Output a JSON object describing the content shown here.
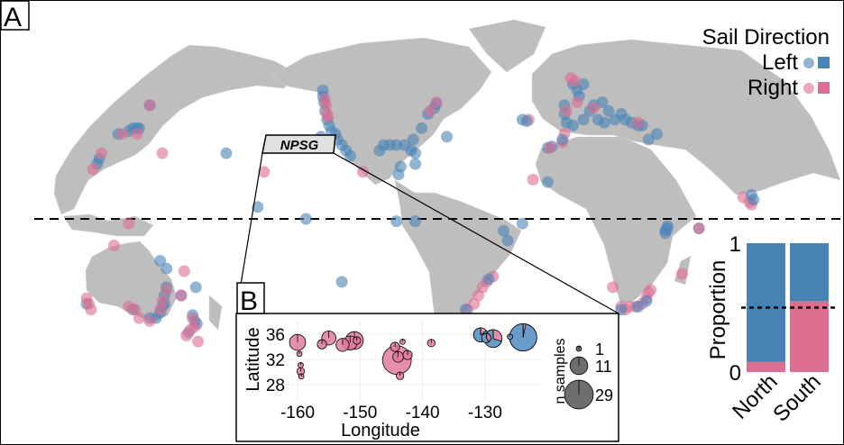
{
  "panel_a": {
    "label": "A",
    "callout_label": "NPSG",
    "legend": {
      "title": "Sail Direction",
      "items": [
        {
          "label": "Left",
          "color": "#4a83b7"
        },
        {
          "label": "Right",
          "color": "#de6e91"
        }
      ]
    },
    "equator_line": "dashed",
    "map_points_lonlat_direction": [
      [
        -124,
        48,
        "L"
      ],
      [
        -124,
        46,
        "L"
      ],
      [
        -123.5,
        44,
        "L"
      ],
      [
        -123,
        41,
        "L"
      ],
      [
        -122,
        38,
        "L"
      ],
      [
        -121,
        36,
        "L"
      ],
      [
        -120,
        34,
        "L"
      ],
      [
        -118,
        33,
        "L"
      ],
      [
        -117,
        31,
        "L"
      ],
      [
        -115,
        29,
        "L"
      ],
      [
        -113,
        27,
        "L"
      ],
      [
        -111,
        25,
        "L"
      ],
      [
        -125,
        32,
        "L"
      ],
      [
        -123,
        45,
        "R"
      ],
      [
        -122.5,
        43,
        "R"
      ],
      [
        -122,
        40,
        "R"
      ],
      [
        -121.5,
        39,
        "R"
      ],
      [
        -105,
        19,
        "R"
      ],
      [
        -97,
        27,
        "L"
      ],
      [
        -95,
        29,
        "L"
      ],
      [
        -92,
        29,
        "L"
      ],
      [
        -89,
        29,
        "L"
      ],
      [
        -85,
        29,
        "L"
      ],
      [
        -82,
        27,
        "L"
      ],
      [
        -80,
        26,
        "L"
      ],
      [
        -81,
        31,
        "L"
      ],
      [
        -77,
        35,
        "L"
      ],
      [
        -74,
        40,
        "L"
      ],
      [
        -71,
        42,
        "L"
      ],
      [
        -70,
        43.5,
        "L"
      ],
      [
        -65,
        32,
        "L"
      ],
      [
        -80,
        22,
        "L"
      ],
      [
        -87,
        21,
        "L"
      ],
      [
        -88,
        18,
        "L"
      ],
      [
        -73,
        41,
        "R"
      ],
      [
        -70,
        44,
        "R"
      ],
      [
        -170,
        26,
        "L"
      ],
      [
        -152,
        19,
        "R"
      ],
      [
        -155,
        5,
        "L"
      ],
      [
        -132,
        0,
        "L"
      ],
      [
        -115,
        -25,
        "L"
      ],
      [
        -89,
        -1,
        "L"
      ],
      [
        -80,
        -1,
        "L"
      ],
      [
        -38,
        -5,
        "L"
      ],
      [
        -36,
        -9,
        "L"
      ],
      [
        -29,
        -2,
        "L"
      ],
      [
        -43,
        -23,
        "R"
      ],
      [
        -46,
        -25,
        "R"
      ],
      [
        -48,
        -27,
        "R"
      ],
      [
        -50,
        -30,
        "R"
      ],
      [
        -52,
        -33,
        "R"
      ],
      [
        -55,
        -35,
        "R"
      ],
      [
        -45,
        -24,
        "L"
      ],
      [
        -56,
        -35,
        "L"
      ],
      [
        -9,
        43,
        "L"
      ],
      [
        -9,
        40,
        "L"
      ],
      [
        -8,
        37,
        "L"
      ],
      [
        -5,
        36,
        "L"
      ],
      [
        0,
        38,
        "L"
      ],
      [
        3,
        41,
        "L"
      ],
      [
        5,
        43,
        "L"
      ],
      [
        9,
        44,
        "L"
      ],
      [
        12,
        41,
        "L"
      ],
      [
        15,
        38,
        "L"
      ],
      [
        18,
        40,
        "L"
      ],
      [
        20,
        38,
        "L"
      ],
      [
        23,
        37,
        "L"
      ],
      [
        26,
        36,
        "L"
      ],
      [
        28,
        36,
        "L"
      ],
      [
        -3,
        48,
        "L"
      ],
      [
        -5,
        50,
        "L"
      ],
      [
        0,
        50,
        "L"
      ],
      [
        -2,
        46,
        "L"
      ],
      [
        35,
        33,
        "L"
      ],
      [
        31,
        31,
        "L"
      ],
      [
        10,
        37,
        "L"
      ],
      [
        7,
        38,
        "L"
      ],
      [
        -4,
        51,
        "R"
      ],
      [
        -6,
        52,
        "R"
      ],
      [
        -3,
        44,
        "R"
      ],
      [
        -8,
        41,
        "R"
      ],
      [
        26,
        37,
        "R"
      ],
      [
        5,
        42,
        "R"
      ],
      [
        -17,
        28,
        "L"
      ],
      [
        -15,
        28.5,
        "L"
      ],
      [
        -16,
        28,
        "R"
      ],
      [
        -10,
        30,
        "R"
      ],
      [
        -9,
        33,
        "R"
      ],
      [
        -10,
        31,
        "L"
      ],
      [
        -29,
        38,
        "L"
      ],
      [
        -26,
        38,
        "R"
      ],
      [
        -27,
        37.5,
        "L"
      ],
      [
        -24,
        16,
        "R"
      ],
      [
        -17,
        15,
        "L"
      ],
      [
        40,
        -3,
        "L"
      ],
      [
        39,
        -5,
        "L"
      ],
      [
        40,
        -4,
        "L"
      ],
      [
        39,
        -6,
        "L"
      ],
      [
        55,
        -4,
        "L"
      ],
      [
        55,
        -4,
        "R"
      ],
      [
        47,
        -22,
        "R"
      ],
      [
        18,
        -34,
        "R"
      ],
      [
        20,
        -35,
        "R"
      ],
      [
        22,
        -34,
        "R"
      ],
      [
        25,
        -34,
        "R"
      ],
      [
        28,
        -33,
        "R"
      ],
      [
        30,
        -31,
        "R"
      ],
      [
        31,
        -29,
        "R"
      ],
      [
        32,
        -28,
        "R"
      ],
      [
        14,
        -27,
        "R"
      ],
      [
        26,
        -34,
        "L"
      ],
      [
        30,
        -32,
        "L"
      ],
      [
        18,
        -35,
        "L"
      ],
      [
        76,
        9,
        "R"
      ],
      [
        79,
        7,
        "R"
      ],
      [
        80,
        6,
        "R"
      ],
      [
        81,
        8,
        "L"
      ],
      [
        80,
        10,
        "L"
      ],
      [
        140,
        35,
        "L"
      ],
      [
        139,
        35,
        "L"
      ],
      [
        135,
        34,
        "L"
      ],
      [
        137,
        35,
        "L"
      ],
      [
        130,
        33,
        "L"
      ],
      [
        132,
        33,
        "R"
      ],
      [
        139,
        33,
        "R"
      ],
      [
        145,
        43,
        "L"
      ],
      [
        145,
        43,
        "R"
      ],
      [
        151,
        26,
        "R"
      ],
      [
        121,
        24,
        "L"
      ],
      [
        120,
        22,
        "L"
      ],
      [
        122,
        26,
        "R"
      ],
      [
        118,
        20,
        "R"
      ],
      [
        135,
        -2,
        "R"
      ],
      [
        128,
        -11,
        "R"
      ],
      [
        153,
        -20,
        "L"
      ],
      [
        153,
        -27,
        "L"
      ],
      [
        152,
        -30,
        "L"
      ],
      [
        152,
        -33,
        "L"
      ],
      [
        151,
        -34,
        "L"
      ],
      [
        150,
        -36,
        "L"
      ],
      [
        148,
        -38,
        "L"
      ],
      [
        145,
        -38,
        "L"
      ],
      [
        150,
        -17,
        "L"
      ],
      [
        115,
        -33,
        "L"
      ],
      [
        137,
        -35,
        "L"
      ],
      [
        153,
        -28,
        "R"
      ],
      [
        151,
        -32,
        "R"
      ],
      [
        150,
        -35,
        "R"
      ],
      [
        138,
        -35,
        "R"
      ],
      [
        135,
        -34,
        "R"
      ],
      [
        116,
        -33,
        "R"
      ],
      [
        115,
        -31,
        "R"
      ],
      [
        117,
        -35,
        "R"
      ],
      [
        140,
        -38,
        "R"
      ],
      [
        145,
        -39,
        "R"
      ],
      [
        174,
        -37,
        "L"
      ],
      [
        175,
        -39,
        "L"
      ],
      [
        176,
        -40,
        "L"
      ],
      [
        172,
        -43,
        "L"
      ],
      [
        174,
        -38,
        "R"
      ],
      [
        175,
        -41,
        "R"
      ],
      [
        173,
        -42,
        "R"
      ],
      [
        171,
        -44,
        "R"
      ],
      [
        168,
        -46,
        "R"
      ],
      [
        170,
        -21,
        "R"
      ],
      [
        167,
        -27,
        "L"
      ],
      [
        160,
        -30,
        "L"
      ],
      [
        160,
        -30,
        "R"
      ]
    ]
  },
  "chart_data": [
    {
      "type": "pie-scatter",
      "panel_label": "B",
      "xlabel": "Longitude",
      "ylabel": "Latitude",
      "x_ticks": [
        "-160",
        "-150",
        "-140",
        "-130"
      ],
      "y_ticks": [
        "36",
        "32",
        "28"
      ],
      "size_legend": {
        "title": "n samples",
        "values": [
          "1",
          "11",
          "29"
        ]
      },
      "grid": true,
      "pies_lon_lat_n_fracLeft": [
        [
          -160,
          34.7,
          9,
          0
        ],
        [
          -159.7,
          32.9,
          1,
          0
        ],
        [
          -159.5,
          31.1,
          1,
          0
        ],
        [
          -159.5,
          30.1,
          2,
          0
        ],
        [
          -159.4,
          29.3,
          1,
          0
        ],
        [
          -156.1,
          34.4,
          3,
          0
        ],
        [
          -155,
          35.4,
          7,
          0
        ],
        [
          -152.8,
          34.3,
          6,
          0
        ],
        [
          -150.9,
          35,
          11,
          0
        ],
        [
          -151.6,
          34.6,
          7,
          0
        ],
        [
          -150.5,
          35,
          2,
          0
        ],
        [
          -144.1,
          31.9,
          29,
          0
        ],
        [
          -143.9,
          32.4,
          4,
          0
        ],
        [
          -144.4,
          34,
          3,
          0
        ],
        [
          -143.2,
          34.8,
          1,
          0
        ],
        [
          -142.4,
          32.7,
          3,
          0
        ],
        [
          -143.6,
          29.4,
          2,
          0
        ],
        [
          -138.6,
          34.6,
          2,
          0
        ],
        [
          -130.7,
          35.9,
          7,
          0.85
        ],
        [
          -129.8,
          35.4,
          3,
          0.6
        ],
        [
          -128.7,
          35.3,
          11,
          0.7
        ],
        [
          -126,
          35.6,
          1,
          1
        ],
        [
          -123.9,
          35.5,
          26,
          0.97
        ]
      ]
    },
    {
      "type": "bar",
      "stacked": true,
      "categories": [
        "North",
        "South"
      ],
      "ylabel": "Proportion",
      "y_ticks": [
        "0",
        "1"
      ],
      "ylim": [
        0,
        1
      ],
      "reference_line": 0.5,
      "series": [
        {
          "name": "Right",
          "values": [
            0.08,
            0.55
          ]
        },
        {
          "name": "Left",
          "values": [
            0.92,
            0.45
          ]
        }
      ]
    }
  ]
}
